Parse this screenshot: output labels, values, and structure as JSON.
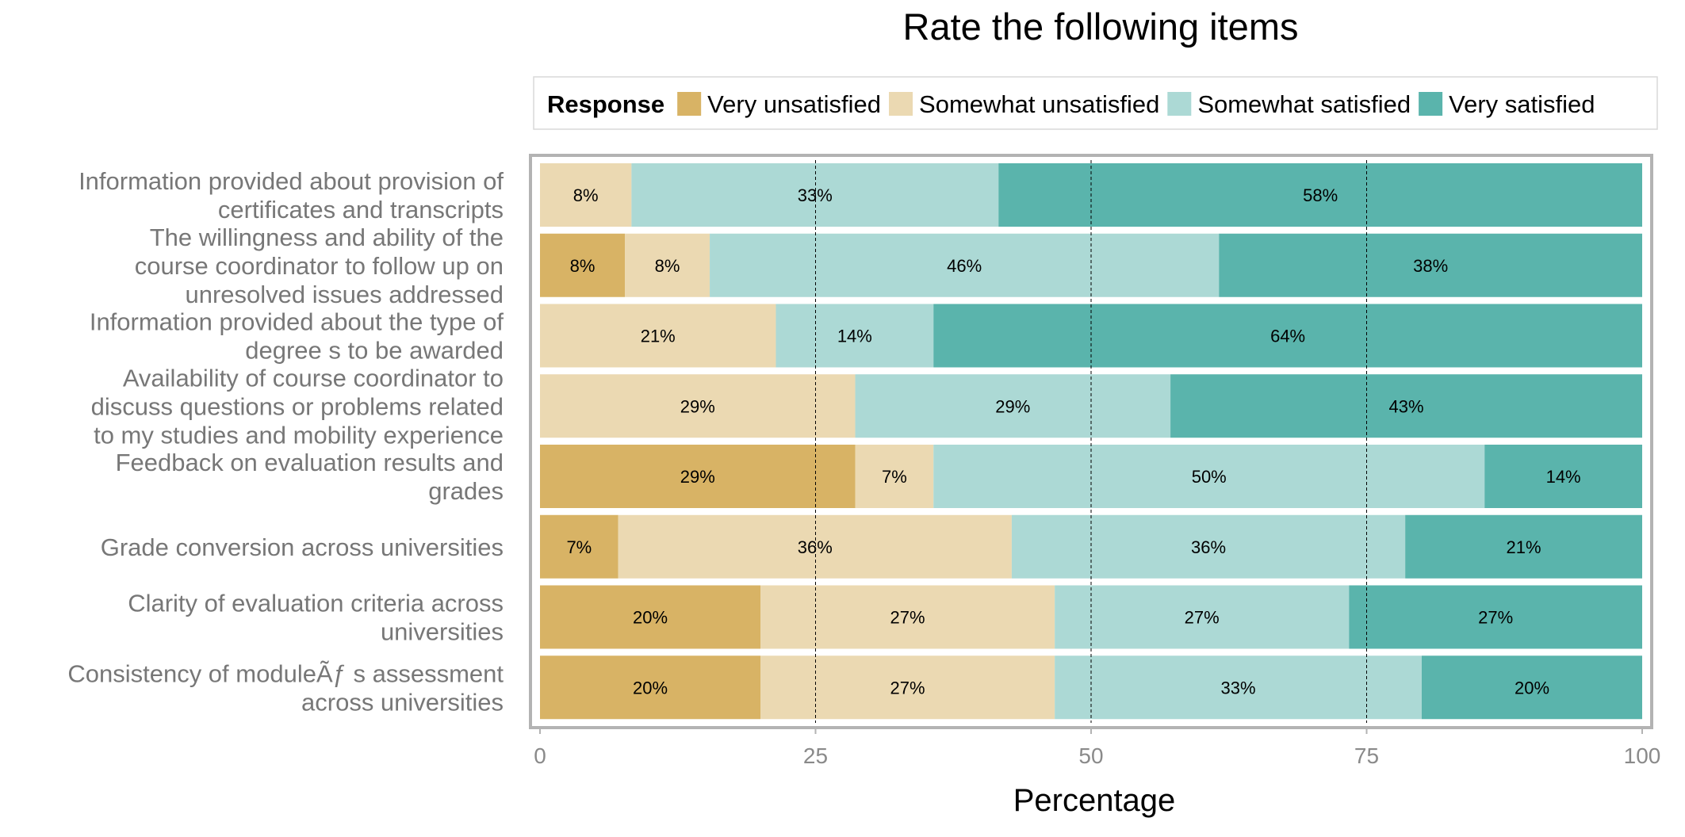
{
  "chart_data": {
    "type": "bar",
    "orientation": "horizontal",
    "stacked": true,
    "title": "Rate the following items",
    "xlabel": "Percentage",
    "ylabel": "",
    "xlim": [
      0,
      100
    ],
    "x_ticks": [
      "0",
      "25",
      "50",
      "75",
      "100"
    ],
    "grid": "dashed vertical lines at 25, 50, 75",
    "legend": {
      "title": "Response",
      "placement": "top",
      "entries": [
        "Very unsatisfied",
        "Somewhat unsatisfied",
        "Somewhat satisfied",
        "Very satisfied"
      ]
    },
    "categories": [
      {
        "lines": [
          "Information provided about provision of",
          "certificates and transcripts"
        ]
      },
      {
        "lines": [
          "The willingness and ability of the",
          "course coordinator to follow up on",
          "unresolved issues addressed"
        ]
      },
      {
        "lines": [
          "Information provided about the type of",
          "degree s to be awarded"
        ]
      },
      {
        "lines": [
          "Availability of course coordinator to",
          "discuss questions or problems related",
          "to my studies and mobility experience"
        ]
      },
      {
        "lines": [
          "Feedback on evaluation results and",
          "grades"
        ]
      },
      {
        "lines": [
          "Grade conversion across universities"
        ]
      },
      {
        "lines": [
          "Clarity of evaluation criteria across",
          "universities"
        ]
      },
      {
        "lines": [
          "Consistency of moduleÃƒ s assessment",
          "across universities"
        ]
      }
    ],
    "series": [
      {
        "name": "Very unsatisfied",
        "color": "#d8b365",
        "values": [
          0,
          7.7,
          0,
          0,
          28.6,
          7.1,
          20,
          20
        ],
        "labels": [
          "",
          "8%",
          "",
          "",
          "29%",
          "7%",
          "20%",
          "20%"
        ]
      },
      {
        "name": "Somewhat unsatisfied",
        "color": "#ebd9b2",
        "values": [
          8.3,
          7.7,
          21.4,
          28.6,
          7.1,
          35.7,
          26.7,
          26.7
        ],
        "labels": [
          "8%",
          "8%",
          "21%",
          "29%",
          "7%",
          "36%",
          "27%",
          "27%"
        ]
      },
      {
        "name": "Somewhat satisfied",
        "color": "#acd9d5",
        "values": [
          33.3,
          46.2,
          14.3,
          28.6,
          50,
          35.7,
          26.7,
          33.3
        ],
        "labels": [
          "33%",
          "46%",
          "14%",
          "29%",
          "50%",
          "36%",
          "27%",
          "33%"
        ]
      },
      {
        "name": "Very satisfied",
        "color": "#5ab4ac",
        "values": [
          58.4,
          38.4,
          64.3,
          42.8,
          14.3,
          21.5,
          26.6,
          20
        ],
        "labels": [
          "58%",
          "38%",
          "64%",
          "43%",
          "14%",
          "21%",
          "27%",
          "20%"
        ]
      }
    ]
  }
}
